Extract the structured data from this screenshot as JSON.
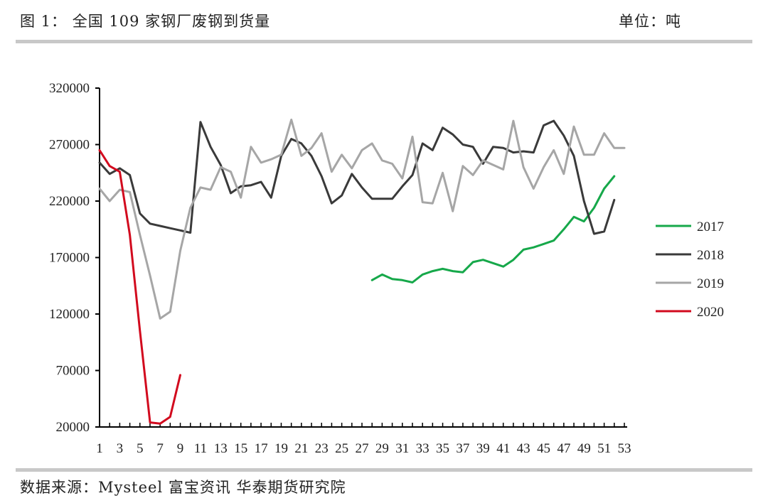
{
  "header": {
    "title": "图 1： 全国 109 家钢厂废钢到货量",
    "unit": "单位：吨"
  },
  "footer": {
    "source": "数据来源：Mysteel 富宝资讯 华泰期货研究院"
  },
  "chart_data": {
    "type": "line",
    "title": "全国 109 家钢厂废钢到货量",
    "ylabel": "",
    "xlabel": "",
    "ylim": [
      20000,
      320000
    ],
    "xlim": [
      1,
      53
    ],
    "y_ticks": [
      20000,
      70000,
      120000,
      170000,
      220000,
      270000,
      320000
    ],
    "x_tick_labels": [
      1,
      3,
      5,
      7,
      9,
      11,
      13,
      15,
      17,
      19,
      21,
      23,
      25,
      27,
      29,
      31,
      33,
      35,
      37,
      39,
      41,
      43,
      45,
      47,
      49,
      51,
      53
    ],
    "legend_position": "right",
    "grid": false,
    "series": [
      {
        "name": "2017",
        "color": "#16a84a",
        "x": [
          28,
          29,
          30,
          31,
          32,
          33,
          34,
          35,
          36,
          37,
          38,
          39,
          40,
          41,
          42,
          43,
          44,
          45,
          46,
          47,
          48,
          49,
          50,
          51,
          52
        ],
        "values": [
          150000,
          155000,
          151000,
          150000,
          148000,
          155000,
          158000,
          160000,
          158000,
          157000,
          166000,
          168000,
          165000,
          162000,
          168000,
          177000,
          179000,
          182000,
          185000,
          195000,
          206000,
          202000,
          214000,
          231000,
          242000
        ]
      },
      {
        "name": "2018",
        "color": "#3a3a3a",
        "x": [
          1,
          2,
          3,
          4,
          5,
          6,
          7,
          8,
          9,
          10,
          11,
          12,
          13,
          14,
          15,
          16,
          17,
          18,
          19,
          20,
          21,
          22,
          23,
          24,
          25,
          26,
          27,
          28,
          29,
          30,
          31,
          32,
          33,
          34,
          35,
          36,
          37,
          38,
          39,
          40,
          41,
          42,
          43,
          44,
          45,
          46,
          47,
          48,
          49,
          50,
          51,
          52
        ],
        "values": [
          254000,
          244000,
          249000,
          243000,
          209000,
          200000,
          198000,
          196000,
          194000,
          192000,
          290000,
          268000,
          252000,
          227000,
          233000,
          234000,
          237000,
          223000,
          260000,
          275000,
          271000,
          260000,
          242000,
          218000,
          225000,
          244000,
          232000,
          222000,
          222000,
          222000,
          233000,
          243000,
          271000,
          265000,
          285000,
          279000,
          270000,
          268000,
          253000,
          268000,
          267000,
          263000,
          264000,
          263000,
          287000,
          291000,
          278000,
          260000,
          220000,
          191000,
          193000,
          221000
        ]
      },
      {
        "name": "2019",
        "color": "#a6a6a6",
        "x": [
          1,
          2,
          3,
          4,
          5,
          6,
          7,
          8,
          9,
          10,
          11,
          12,
          13,
          14,
          15,
          16,
          17,
          18,
          19,
          20,
          21,
          22,
          23,
          24,
          25,
          26,
          27,
          28,
          29,
          30,
          31,
          32,
          33,
          34,
          35,
          36,
          37,
          38,
          39,
          40,
          41,
          42,
          43,
          44,
          45,
          46,
          47,
          48,
          49,
          50,
          51,
          52,
          53
        ],
        "values": [
          231000,
          220000,
          230000,
          228000,
          190000,
          154000,
          116000,
          122000,
          176000,
          214000,
          232000,
          230000,
          250000,
          246000,
          223000,
          268000,
          254000,
          257000,
          261000,
          292000,
          260000,
          267000,
          280000,
          246000,
          261000,
          249000,
          265000,
          271000,
          256000,
          253000,
          240000,
          277000,
          219000,
          218000,
          245000,
          211000,
          251000,
          243000,
          256000,
          252000,
          248000,
          291000,
          250000,
          231000,
          250000,
          265000,
          244000,
          286000,
          261000,
          261000,
          280000,
          267000,
          267000
        ]
      },
      {
        "name": "2020",
        "color": "#d20a1e",
        "x": [
          1,
          2,
          3,
          4,
          5,
          6,
          7,
          8,
          9
        ],
        "values": [
          265000,
          251000,
          246000,
          190000,
          105000,
          24000,
          23000,
          29000,
          66000
        ]
      }
    ]
  }
}
